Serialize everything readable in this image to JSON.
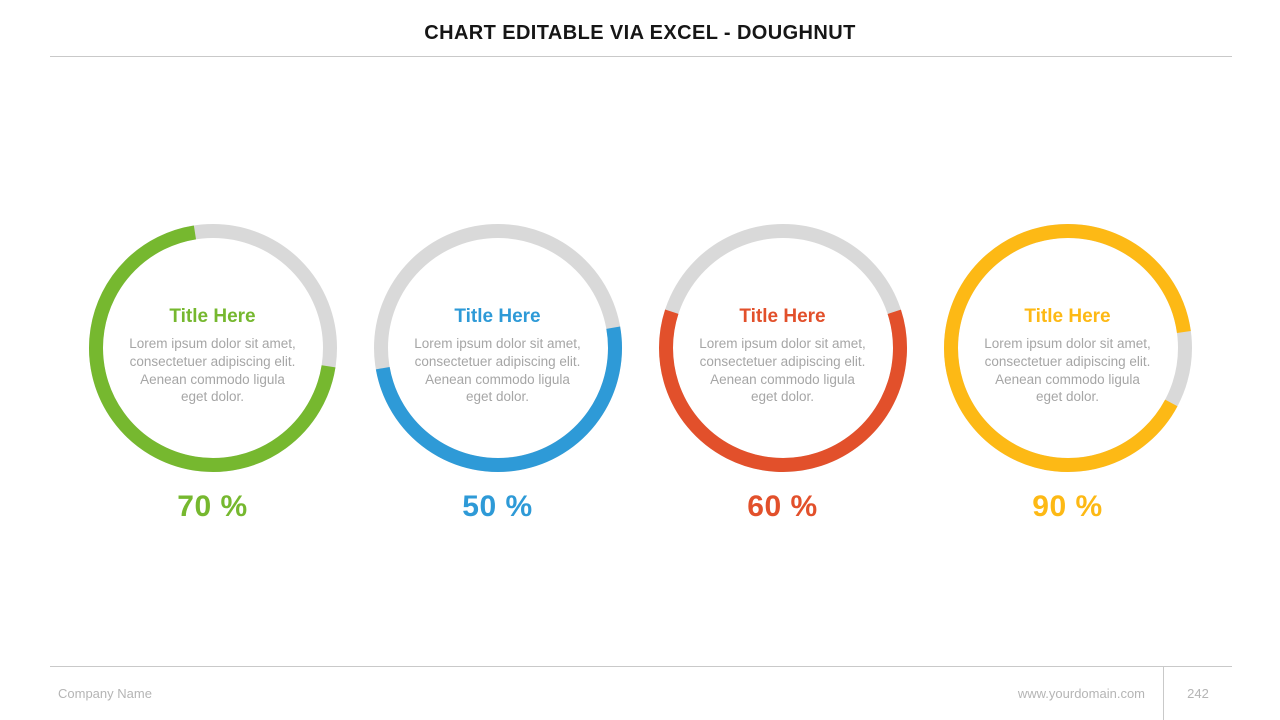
{
  "header": {
    "title": "CHART EDITABLE VIA EXCEL - DOUGHNUT"
  },
  "chart_data": {
    "type": "pie",
    "subtype": "doughnut-set",
    "track_color": "#d9d9d9",
    "charts": [
      {
        "title": "Title Here",
        "description": "Lorem ipsum dolor sit amet, consectetuer adipiscing elit. Aenean commodo ligula eget dolor.",
        "percent": 70,
        "percent_label": "70 %",
        "color": "#76b82f",
        "track_color": "#d9d9d9",
        "start_angle_deg": 99
      },
      {
        "title": "Title Here",
        "description": "Lorem ipsum dolor sit amet, consectetuer adipiscing elit. Aenean commodo ligula eget dolor.",
        "percent": 50,
        "percent_label": "50 %",
        "color": "#2e9ad7",
        "track_color": "#d9d9d9",
        "start_angle_deg": 80
      },
      {
        "title": "Title Here",
        "description": "Lorem ipsum dolor sit amet, consectetuer adipiscing elit. Aenean commodo ligula eget dolor.",
        "percent": 60,
        "percent_label": "60 %",
        "color": "#e2502b",
        "track_color": "#d9d9d9",
        "start_angle_deg": 72
      },
      {
        "title": "Title Here",
        "description": "Lorem ipsum dolor sit amet, consectetuer adipiscing elit. Aenean commodo ligula eget dolor.",
        "percent": 90,
        "percent_label": "90 %",
        "color": "#fdb915",
        "track_color": "#d9d9d9",
        "start_angle_deg": 118
      }
    ]
  },
  "footer": {
    "company": "Company Name",
    "domain": "www.yourdomain.com",
    "page": "242"
  }
}
